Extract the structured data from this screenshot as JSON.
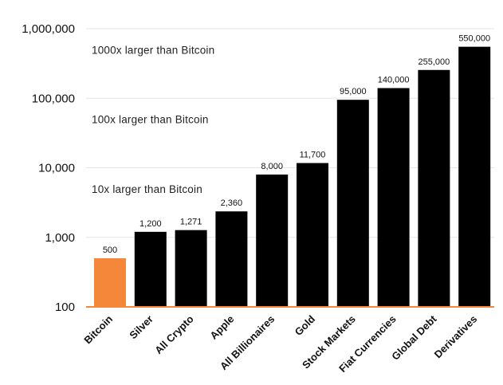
{
  "chart_data": {
    "type": "bar",
    "yscale": "log",
    "ylim": [
      100,
      1000000
    ],
    "yticks": [
      100,
      1000,
      10000,
      100000,
      1000000
    ],
    "ytick_labels": [
      "100",
      "1,000",
      "10,000",
      "100,000",
      "1,000,000"
    ],
    "grid": "horizontal",
    "categories": [
      "Bitcoin",
      "Silver",
      "All Crypto",
      "Apple",
      "All Billionaires",
      "Gold",
      "Stock Markets",
      "Fiat Currencies",
      "Global Debt",
      "Derivatives"
    ],
    "values": [
      500,
      1200,
      1271,
      2360,
      8000,
      11700,
      95000,
      140000,
      255000,
      550000
    ],
    "value_labels": [
      "500",
      "1,200",
      "1,271",
      "2,360",
      "8,000",
      "11,700",
      "95,000",
      "140,000",
      "255,000",
      "550,000"
    ],
    "annotations": [
      {
        "text": "1000x larger than Bitcoin",
        "y": 500000
      },
      {
        "text": "100x larger than Bitcoin",
        "y": 50000
      },
      {
        "text": "10x larger than Bitcoin",
        "y": 5000
      }
    ],
    "colors": {
      "highlight": "#f5873a",
      "bar": "#000000",
      "baseline": "#f5873a",
      "grid": "#e6e6e6"
    }
  }
}
